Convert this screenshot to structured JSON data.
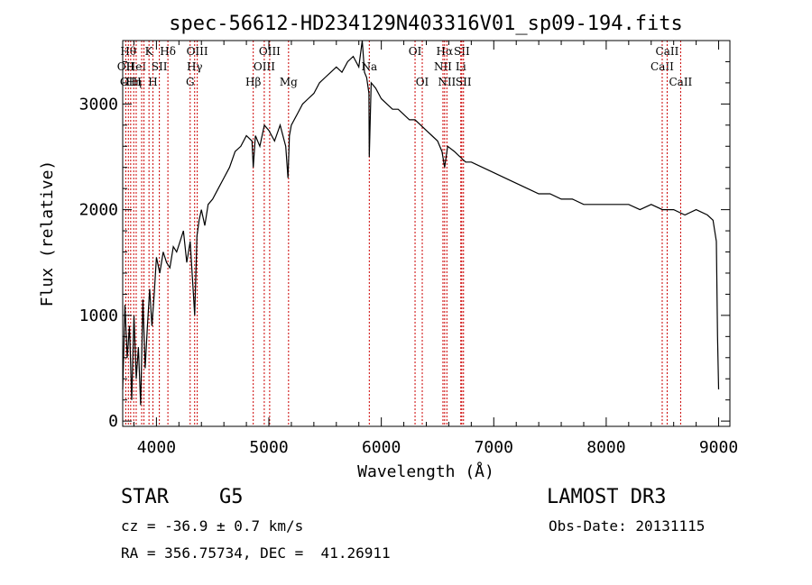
{
  "chart_data": {
    "type": "line",
    "title": "spec-56612-HD234129N403316V01_sp09-194.fits",
    "xlabel": "Wavelength (Å)",
    "ylabel": "Flux (relative)",
    "xlim": [
      3700,
      9100
    ],
    "ylim": [
      -50,
      3600
    ],
    "x_ticks": [
      4000,
      5000,
      6000,
      7000,
      8000,
      9000
    ],
    "y_ticks": [
      0,
      1000,
      2000,
      3000
    ],
    "grid": false,
    "line_color": "#000000",
    "marker_color": "#cc0000",
    "series": [
      {
        "x": [
          3700,
          3720,
          3740,
          3760,
          3780,
          3800,
          3820,
          3840,
          3860,
          3880,
          3900,
          3920,
          3940,
          3960,
          3980,
          4000,
          4030,
          4060,
          4090,
          4120,
          4150,
          4180,
          4210,
          4240,
          4270,
          4300,
          4320,
          4340,
          4360,
          4380,
          4400,
          4430,
          4460,
          4500,
          4550,
          4600,
          4650,
          4700,
          4750,
          4800,
          4850,
          4861,
          4880,
          4920,
          4960,
          5000,
          5050,
          5100,
          5150,
          5170,
          5183,
          5200,
          5250,
          5300,
          5350,
          5400,
          5450,
          5500,
          5550,
          5600,
          5650,
          5700,
          5750,
          5800,
          5830,
          5850,
          5870,
          5890,
          5893,
          5910,
          5950,
          6000,
          6050,
          6100,
          6150,
          6200,
          6250,
          6300,
          6350,
          6400,
          6450,
          6500,
          6540,
          6563,
          6590,
          6650,
          6700,
          6750,
          6800,
          6900,
          7000,
          7100,
          7200,
          7300,
          7400,
          7500,
          7600,
          7700,
          7800,
          7900,
          8000,
          8100,
          8200,
          8300,
          8400,
          8500,
          8600,
          8700,
          8800,
          8900,
          8950,
          8980,
          8990,
          9000
        ],
        "y": [
          300,
          1100,
          600,
          900,
          200,
          1000,
          400,
          700,
          150,
          1150,
          500,
          900,
          1250,
          900,
          1200,
          1550,
          1400,
          1600,
          1500,
          1450,
          1650,
          1600,
          1700,
          1800,
          1500,
          1700,
          1350,
          1000,
          1750,
          1900,
          2000,
          1850,
          2050,
          2100,
          2200,
          2300,
          2400,
          2550,
          2600,
          2700,
          2650,
          2400,
          2700,
          2600,
          2800,
          2750,
          2650,
          2800,
          2600,
          2300,
          2700,
          2800,
          2900,
          3000,
          3050,
          3100,
          3200,
          3250,
          3300,
          3350,
          3300,
          3400,
          3450,
          3350,
          3600,
          3300,
          3250,
          3100,
          2500,
          3200,
          3150,
          3050,
          3000,
          2950,
          2950,
          2900,
          2850,
          2850,
          2800,
          2750,
          2700,
          2650,
          2550,
          2400,
          2600,
          2550,
          2500,
          2450,
          2450,
          2400,
          2350,
          2300,
          2250,
          2200,
          2150,
          2150,
          2100,
          2100,
          2050,
          2050,
          2050,
          2050,
          2050,
          2000,
          2050,
          2000,
          2000,
          1950,
          2000,
          1950,
          1900,
          1700,
          800,
          300
        ]
      }
    ],
    "line_markers": [
      {
        "x": 3727,
        "label": "OII",
        "row": 1
      },
      {
        "x": 3750,
        "label": "Hθ",
        "row": 0
      },
      {
        "x": 3771,
        "label": "OIII",
        "row": 2
      },
      {
        "x": 3798,
        "label": "Hη",
        "row": 2
      },
      {
        "x": 3820,
        "label": "HeI",
        "row": 1
      },
      {
        "x": 3869,
        "label": "",
        "row": 0
      },
      {
        "x": 3889,
        "label": "",
        "row": 0
      },
      {
        "x": 3934,
        "label": "K",
        "row": 0
      },
      {
        "x": 3969,
        "label": "H",
        "row": 2
      },
      {
        "x": 4026,
        "label": "SII",
        "row": 1
      },
      {
        "x": 4102,
        "label": "Hδ",
        "row": 0
      },
      {
        "x": 4300,
        "label": "G",
        "row": 2
      },
      {
        "x": 4340,
        "label": "Hγ",
        "row": 1
      },
      {
        "x": 4363,
        "label": "OIII",
        "row": 0
      },
      {
        "x": 4861,
        "label": "Hβ",
        "row": 2
      },
      {
        "x": 4959,
        "label": "OIII",
        "row": 1
      },
      {
        "x": 5007,
        "label": "OIII",
        "row": 0
      },
      {
        "x": 5175,
        "label": "Mg",
        "row": 2
      },
      {
        "x": 5893,
        "label": "Na",
        "row": 1
      },
      {
        "x": 6300,
        "label": "OI",
        "row": 0
      },
      {
        "x": 6364,
        "label": "OI",
        "row": 2
      },
      {
        "x": 6548,
        "label": "NII",
        "row": 1
      },
      {
        "x": 6563,
        "label": "Hα",
        "row": 0
      },
      {
        "x": 6583,
        "label": "NII",
        "row": 2
      },
      {
        "x": 6707,
        "label": "Li",
        "row": 1
      },
      {
        "x": 6716,
        "label": "SII",
        "row": 0
      },
      {
        "x": 6731,
        "label": "SII",
        "row": 2
      },
      {
        "x": 8498,
        "label": "CaII",
        "row": 1
      },
      {
        "x": 8542,
        "label": "CaII",
        "row": 0
      },
      {
        "x": 8662,
        "label": "CaII",
        "row": 2
      }
    ]
  },
  "info": {
    "object_class": "STAR",
    "subclass": "G5",
    "survey": "LAMOST DR3",
    "redshift": "cz = -36.9 ± 0.7 km/s",
    "obs_date": "Obs-Date: 20131115",
    "coords": "RA = 356.75734, DEC =  41.26911"
  }
}
